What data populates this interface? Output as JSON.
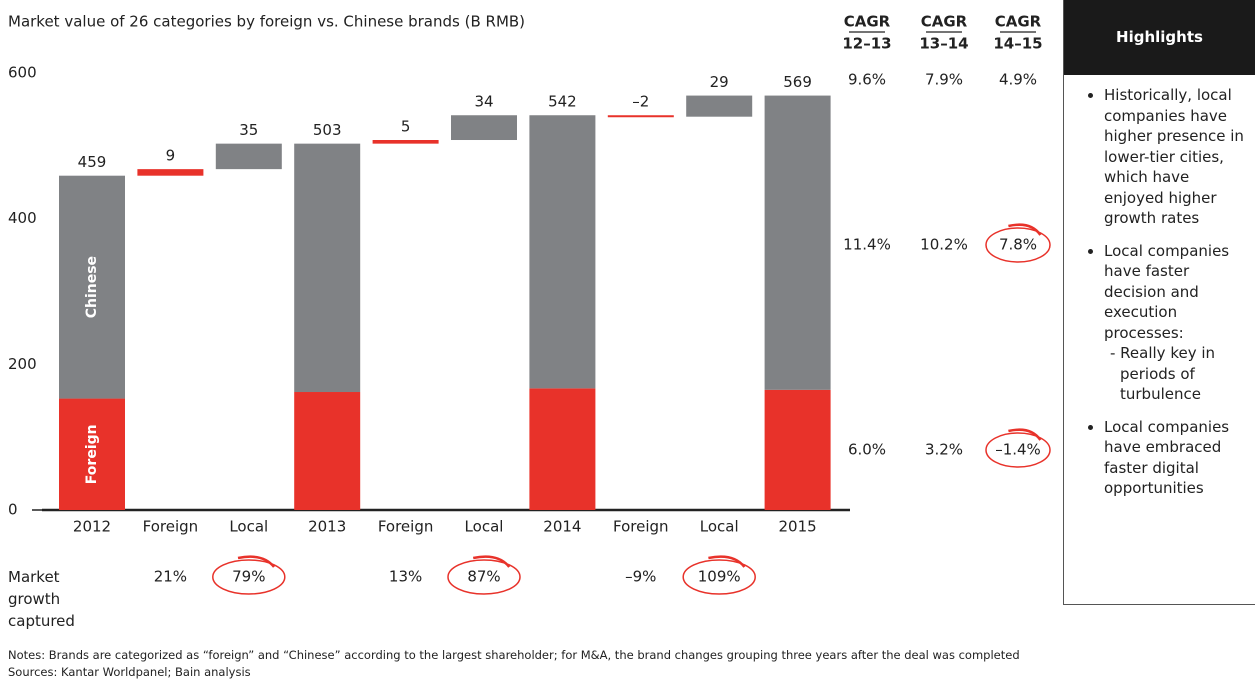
{
  "chart_data": {
    "type": "waterfall",
    "title": "Market value of 26 categories by foreign vs. Chinese brands (B RMB)",
    "categories": [
      "2012",
      "Foreign",
      "Local",
      "2013",
      "Foreign",
      "Local",
      "2014",
      "Foreign",
      "Local",
      "2015"
    ],
    "values": [
      459,
      9,
      35,
      503,
      5,
      34,
      542,
      -2,
      29,
      569
    ],
    "value_labels": [
      "459",
      "9",
      "35",
      "503",
      "5",
      "34",
      "542",
      "–2",
      "29",
      "569"
    ],
    "series": [
      {
        "name": "Foreign",
        "color": "#e8322a",
        "values": [
          153,
          null,
          null,
          162,
          null,
          null,
          167,
          null,
          null,
          165
        ]
      },
      {
        "name": "Chinese",
        "color": "#808285",
        "values": [
          306,
          null,
          null,
          341,
          null,
          null,
          375,
          null,
          null,
          404
        ]
      }
    ],
    "step_colors": {
      "Foreign": "#e8322a",
      "Local": "#808285"
    },
    "ylim": [
      0,
      600
    ],
    "yticks": [
      0,
      200,
      400,
      600
    ],
    "growth_captured": {
      "label": "Market growth captured",
      "labels": [
        null,
        "21%",
        "79%",
        null,
        "13%",
        "87%",
        null,
        "–9%",
        "109%",
        null
      ]
    },
    "cagr": {
      "headers": [
        [
          "CAGR",
          "12–13"
        ],
        [
          "CAGR",
          "13–14"
        ],
        [
          "CAGR",
          "14–15"
        ]
      ],
      "rows": [
        [
          "9.6%",
          "7.9%",
          "4.9%"
        ],
        [
          "11.4%",
          "10.2%",
          "7.8%"
        ],
        [
          "6.0%",
          "3.2%",
          "–1.4%"
        ]
      ]
    }
  },
  "highlights": {
    "title": "Highlights",
    "bullets": [
      {
        "text": "Historically, local companies have higher presence in lower-tier cities, which have enjoyed higher growth rates"
      },
      {
        "text": "Local companies have faster decision and execution processes:",
        "sub": "- Really key in periods of turbulence"
      },
      {
        "text": "Local companies have embraced faster digital opportunities"
      }
    ]
  },
  "notes": "Notes: Brands are categorized as “foreign” and “Chinese” according to the largest shareholder; for M&A, the brand changes grouping three years after the deal was completed",
  "sources": "Sources: Kantar Worldpanel; Bain analysis"
}
